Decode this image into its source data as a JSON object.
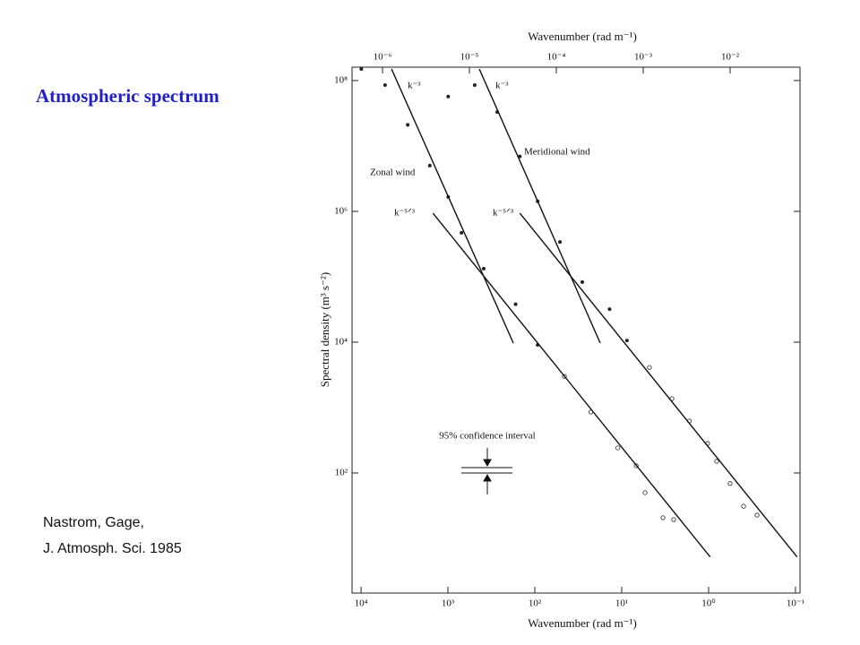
{
  "header": {
    "title": "Atmospheric spectrum"
  },
  "citation": [
    "Nastrom, Gage,",
    "J. Atmosph. Sci. 1985"
  ],
  "chart_data": {
    "type": "scatter",
    "x_label": "Wavenumber (rad m⁻¹)",
    "x2_label": "Wavenumber (rad m⁻¹)",
    "y_label": "Spectral density (m³ s⁻²)",
    "log_x": true,
    "log_y": true,
    "xlim": [
      4.46e-07,
      0.0637
    ],
    "xticks": [
      {
        "value": 1e-06,
        "label": "10⁻⁶"
      },
      {
        "value": 1e-05,
        "label": "10⁻⁵"
      },
      {
        "value": 0.0001,
        "label": "10⁻⁴"
      },
      {
        "value": 0.001,
        "label": "10⁻³"
      },
      {
        "value": 0.01,
        "label": "10⁻²"
      }
    ],
    "x2lim": [
      12700,
      0.0887
    ],
    "x2ticks": [
      {
        "value": 10000,
        "label": "10⁴"
      },
      {
        "value": 1000,
        "label": "10³"
      },
      {
        "value": 100,
        "label": "10²"
      },
      {
        "value": 10,
        "label": "10¹"
      },
      {
        "value": 1,
        "label": "10⁰"
      },
      {
        "value": 0.1,
        "label": "10⁻¹"
      }
    ],
    "ylim": [
      1.46,
      160000000.0
    ],
    "yticks": [
      {
        "value": 100,
        "label": "10²"
      },
      {
        "value": 10000,
        "label": "10⁴"
      },
      {
        "value": 1000000,
        "label": "10⁶"
      },
      {
        "value": 100000000,
        "label": "10⁸"
      }
    ],
    "annotations": [
      "95% confidence interval"
    ],
    "series": [
      {
        "name": "Zonal wind",
        "type": "scatter",
        "color": "#222",
        "x": [
          5.7e-07,
          1.07e-06,
          1.95e-06,
          3.5e-06,
          5.7e-06,
          8.1e-06,
          1.46e-05,
          3.4e-05,
          6.1e-05,
          0.000124,
          0.00025,
          0.00051,
          0.00083,
          0.00105,
          0.00169,
          0.00224
        ],
        "values": [
          150000000.0,
          85000000.0,
          21000000.0,
          5000000.0,
          1660000.0,
          470000.0,
          133000.0,
          38000.0,
          9100,
          3000,
          855,
          242,
          129,
          50,
          20.7,
          19.4
        ]
      },
      {
        "name": "Meridional wind",
        "type": "scatter",
        "color": "#222",
        "x": [
          5.7e-06,
          1.15e-05,
          2.09e-05,
          3.8e-05,
          6.1e-05,
          0.00011,
          0.000199,
          0.00041,
          0.00065,
          0.00118,
          0.00214,
          0.0034,
          0.0055,
          0.007,
          0.01,
          0.0143,
          0.0204
        ],
        "values": [
          57000000.0,
          85000000.0,
          33000000.0,
          6900000.0,
          1420000.0,
          340000.0,
          83000.0,
          32000.0,
          10600,
          4100,
          1370,
          624,
          283,
          151,
          69,
          31,
          22.7
        ]
      },
      {
        "name": "k⁻³",
        "type": "line",
        "color": "#111",
        "x": [
          1.27e-06,
          3.2e-05
        ],
        "values": [
          150000000.0,
          9700
        ]
      },
      {
        "name": "k⁻⁵ᐟ³",
        "type": "line",
        "color": "#111",
        "x": [
          3.8e-06,
          0.0059
        ],
        "values": [
          940000.0,
          5.2
        ]
      },
      {
        "name": "k⁻³",
        "type": "line",
        "color": "#111",
        "x": [
          1.3e-05,
          0.00032
        ],
        "values": [
          150000000.0,
          9700
        ]
      },
      {
        "name": "k⁻⁵ᐟ³",
        "type": "line",
        "color": "#111",
        "x": [
          3.8e-05,
          0.059
        ],
        "values": [
          940000.0,
          5.2
        ]
      }
    ]
  }
}
